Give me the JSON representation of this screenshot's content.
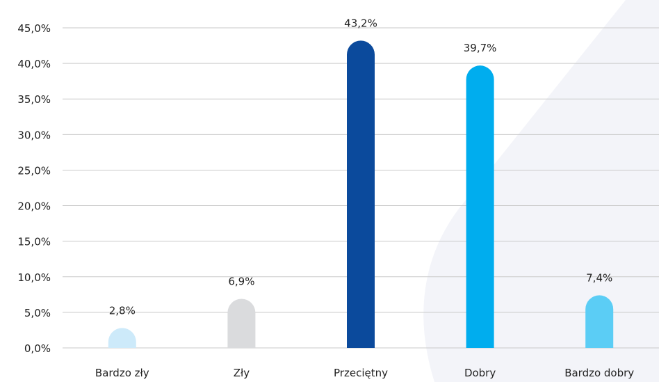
{
  "chart_data": {
    "type": "bar",
    "categories": [
      "Bardzo zły",
      "Zły",
      "Przeciętny",
      "Dobry",
      "Bardzo dobry"
    ],
    "values": [
      2.8,
      6.9,
      43.2,
      39.7,
      7.4
    ],
    "value_labels": [
      "2,8%",
      "6,9%",
      "43,2%",
      "39,7%",
      "7,4%"
    ],
    "bar_colors": [
      "#cdeafa",
      "#dadbdd",
      "#0b4a9c",
      "#00adee",
      "#5bcdf5"
    ],
    "ylim": [
      0,
      45
    ],
    "yticks": [
      0,
      5,
      10,
      15,
      20,
      25,
      30,
      35,
      40,
      45
    ],
    "ytick_labels": [
      "0,0%",
      "5,0%",
      "10,0%",
      "15,0%",
      "20,0%",
      "25,0%",
      "30,0%",
      "35,0%",
      "40,0%",
      "45,0%"
    ],
    "grid": true,
    "title": "",
    "xlabel": "",
    "ylabel": ""
  },
  "colors": {
    "grid": "#c9c9c9",
    "background_shape": "#f3f4f9",
    "text": "#222222"
  }
}
